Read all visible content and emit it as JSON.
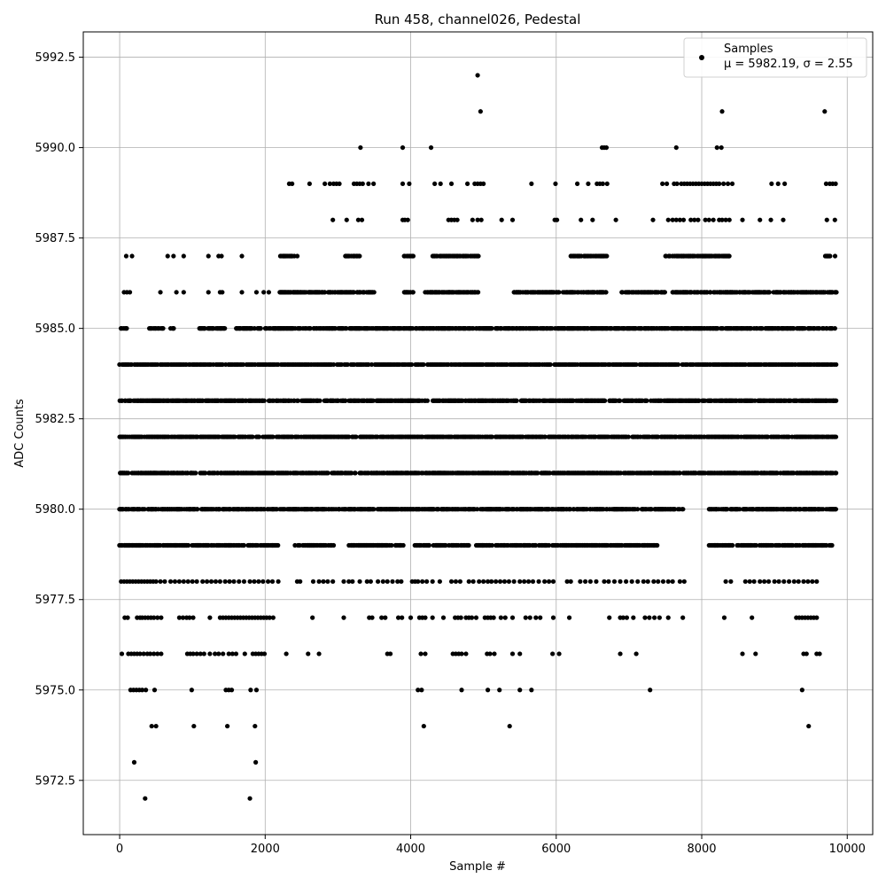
{
  "chart_data": {
    "type": "scatter",
    "title": "Run 458, channel026, Pedestal",
    "xlabel": "Sample #",
    "ylabel": "ADC Counts",
    "xlim": [
      -500,
      10350
    ],
    "ylim": [
      5971.0,
      5993.2
    ],
    "xticks": [
      0,
      2000,
      4000,
      6000,
      8000,
      10000
    ],
    "xtick_labels": [
      "0",
      "2000",
      "4000",
      "6000",
      "8000",
      "10000"
    ],
    "yticks": [
      5972.5,
      5975.0,
      5977.5,
      5980.0,
      5982.5,
      5985.0,
      5987.5,
      5990.0,
      5992.5
    ],
    "ytick_labels": [
      "5972.5",
      "5975.0",
      "5977.5",
      "5980.0",
      "5982.5",
      "5985.0",
      "5987.5",
      "5990.0",
      "5992.5"
    ],
    "grid": true,
    "legend": {
      "placement": "top-right",
      "entry_label": "Samples",
      "entry_stats": "μ = 5982.19, σ = 2.55"
    },
    "marker_color": "#000000",
    "series": [
      {
        "name": "Samples",
        "levels": [
          {
            "y": 5979,
            "ranges": [
              [
                0,
                2180
              ],
              [
                2400,
                2950
              ],
              [
                3150,
                3900
              ],
              [
                4050,
                4800
              ],
              [
                4900,
                5900
              ],
              [
                5950,
                7400
              ],
              [
                8100,
                9800
              ]
            ]
          },
          {
            "y": 5980,
            "ranges": [
              [
                0,
                7750
              ],
              [
                8100,
                9850
              ]
            ]
          },
          {
            "y": 5981,
            "ranges": [
              [
                0,
                9850
              ]
            ]
          },
          {
            "y": 5982,
            "ranges": [
              [
                0,
                9850
              ]
            ]
          },
          {
            "y": 5983,
            "ranges": [
              [
                0,
                9850
              ]
            ]
          },
          {
            "y": 5984,
            "ranges": [
              [
                0,
                9850
              ]
            ]
          },
          {
            "y": 5985,
            "ranges": [
              [
                0,
                100
              ],
              [
                400,
                600
              ],
              [
                700,
                780
              ],
              [
                1100,
                1450
              ],
              [
                1600,
                1950
              ],
              [
                2000,
                9850
              ]
            ]
          },
          {
            "y": 5986,
            "ranges": [
              [
                2200,
                3500
              ],
              [
                3900,
                4050
              ],
              [
                4200,
                4950
              ],
              [
                5400,
                6700
              ],
              [
                6900,
                7500
              ],
              [
                7600,
                9850
              ]
            ]
          },
          {
            "y": 5987,
            "ranges": [
              [
                2200,
                2450
              ],
              [
                3100,
                3300
              ],
              [
                3900,
                4050
              ],
              [
                4300,
                4950
              ],
              [
                6200,
                6700
              ],
              [
                7500,
                8400
              ],
              [
                9700,
                9850
              ]
            ]
          }
        ],
        "sparse": [
          {
            "y": 5972,
            "x": [
              350,
              1790
            ]
          },
          {
            "y": 5973,
            "x": [
              200,
              1870
            ]
          },
          {
            "y": 5974,
            "x": [
              440,
              500,
              1020,
              1480,
              1860,
              4180,
              5360,
              9470
            ]
          },
          {
            "y": 5975,
            "x": [
              150,
              190,
              230,
              270,
              310,
              360,
              480,
              990,
              1460,
              1500,
              1540,
              1800,
              1880,
              4100,
              4150,
              4700,
              5060,
              5220,
              5500,
              5660,
              7290,
              9380
            ]
          },
          {
            "y": 5976,
            "x": [
              30,
              120,
              160,
              200,
              240,
              280,
              330,
              380,
              420,
              470,
              520,
              570,
              930,
              970,
              1010,
              1060,
              1110,
              1160,
              1240,
              1310,
              1360,
              1420,
              1500,
              1550,
              1600,
              1720,
              1830,
              1870,
              1910,
              1950,
              1990,
              2290,
              2590,
              2740,
              3680,
              3720,
              4140,
              4200,
              4580,
              4620,
              4660,
              4700,
              4760,
              5050,
              5090,
              5150,
              5400,
              5500,
              5950,
              6040,
              6880,
              7100,
              8560,
              8740,
              9400,
              9440,
              9580,
              9620
            ]
          },
          {
            "y": 5977,
            "x": [
              70,
              110,
              240,
              280,
              310,
              350,
              390,
              430,
              470,
              520,
              570,
              820,
              870,
              920,
              960,
              1010,
              1240,
              1380,
              1420,
              1460,
              1500,
              1540,
              1580,
              1620,
              1660,
              1700,
              1740,
              1780,
              1820,
              1860,
              1900,
              1940,
              1980,
              2020,
              2060,
              2110,
              2650,
              3080,
              3430,
              3470,
              3600,
              3650,
              3830,
              3880,
              4000,
              4120,
              4160,
              4200,
              4300,
              4450,
              4610,
              4650,
              4690,
              4760,
              4800,
              4840,
              4900,
              5020,
              5060,
              5100,
              5140,
              5240,
              5300,
              5400,
              5580,
              5640,
              5720,
              5780,
              5960,
              6180,
              6730,
              6880,
              6920,
              6970,
              7060,
              7220,
              7280,
              7350,
              7420,
              7540,
              7740,
              8310,
              8690,
              9300,
              9340,
              9380,
              9420,
              9460,
              9500,
              9540,
              9580
            ]
          },
          {
            "y": 5978,
            "x": [
              20,
              60,
              100,
              140,
              180,
              220,
              260,
              300,
              340,
              380,
              420,
              460,
              500,
              560,
              620,
              700,
              760,
              820,
              880,
              940,
              1000,
              1060,
              1140,
              1200,
              1260,
              1320,
              1380,
              1450,
              1510,
              1570,
              1640,
              1710,
              1790,
              1850,
              1910,
              1970,
              2040,
              2100,
              2180,
              2440,
              2480,
              2660,
              2740,
              2800,
              2860,
              2930,
              3080,
              3150,
              3200,
              3300,
              3400,
              3450,
              3550,
              3620,
              3680,
              3750,
              3820,
              3870,
              4020,
              4060,
              4100,
              4160,
              4220,
              4300,
              4400,
              4560,
              4620,
              4680,
              4800,
              4860,
              4940,
              5000,
              5060,
              5110,
              5170,
              5230,
              5290,
              5350,
              5420,
              5500,
              5560,
              5620,
              5680,
              5760,
              5840,
              5900,
              5960,
              6150,
              6200,
              6330,
              6400,
              6470,
              6550,
              6660,
              6720,
              6800,
              6880,
              6960,
              7040,
              7120,
              7200,
              7260,
              7340,
              7400,
              7470,
              7540,
              7600,
              7700,
              7760,
              8330,
              8400,
              8600,
              8660,
              8720,
              8800,
              8860,
              8920,
              9000,
              9060,
              9130,
              9200,
              9270,
              9330,
              9400,
              9460,
              9520,
              9580
            ]
          },
          {
            "y": 5987,
            "x": [
              90,
              170,
              660,
              740,
              880,
              1220,
              1360,
              1400,
              1680
            ]
          },
          {
            "y": 5986,
            "x": [
              60,
              100,
              140,
              560,
              780,
              880,
              1220,
              1380,
              1410,
              1680,
              1880,
              1980,
              2050
            ]
          },
          {
            "y": 5988,
            "x": [
              2930,
              3120,
              3280,
              3330,
              3890,
              3920,
              3960,
              4520,
              4560,
              4600,
              4640,
              4850,
              4920,
              4970,
              5250,
              5400,
              5980,
              6010,
              6340,
              6500,
              6820,
              7330,
              7540,
              7600,
              7650,
              7700,
              7750,
              7850,
              7900,
              7950,
              8050,
              8100,
              8160,
              8240,
              8280,
              8330,
              8380,
              8560,
              8800,
              8950,
              9120,
              9720,
              9830
            ]
          },
          {
            "y": 5989,
            "x": [
              2330,
              2370,
              2610,
              2820,
              2890,
              2940,
              2980,
              3020,
              3220,
              3260,
              3300,
              3340,
              3420,
              3490,
              3890,
              3980,
              4330,
              4410,
              4560,
              4780,
              4880,
              4920,
              4960,
              5000,
              5660,
              5990,
              6290,
              6440,
              6560,
              6600,
              6640,
              6700,
              7460,
              7520,
              7620,
              7660,
              7720,
              7760,
              7800,
              7840,
              7880,
              7920,
              7960,
              8000,
              8040,
              8080,
              8120,
              8160,
              8200,
              8240,
              8300,
              8360,
              8420,
              8960,
              9050,
              9140,
              9710,
              9760,
              9800,
              9840
            ]
          },
          {
            "y": 5990,
            "x": [
              3310,
              3890,
              4280,
              6630,
              6660,
              6690,
              7650,
              8210,
              8270
            ]
          },
          {
            "y": 5991,
            "x": [
              4960,
              8280,
              9690
            ]
          },
          {
            "y": 5992,
            "x": [
              4920
            ]
          }
        ]
      }
    ]
  }
}
